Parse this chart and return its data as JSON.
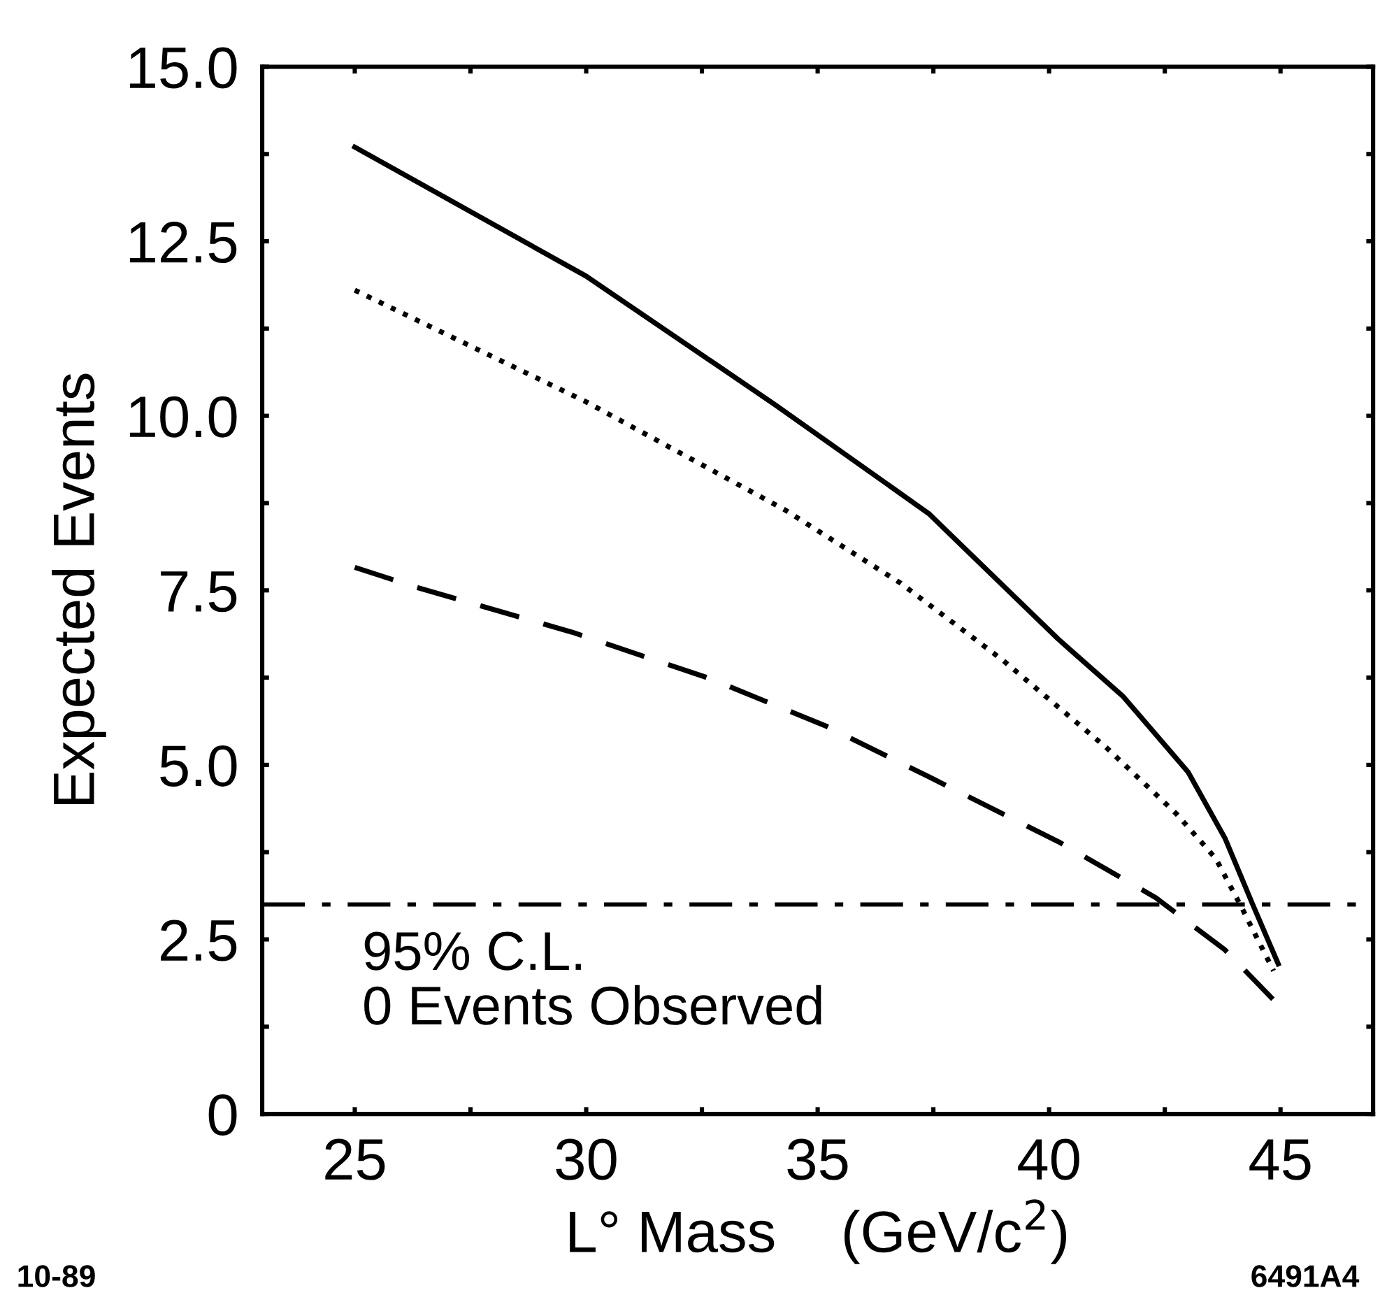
{
  "chart_data": {
    "type": "line",
    "xlabel": "L° Mass    (GeV/c$^{2}$)",
    "ylabel": "Expected Events",
    "series": [
      {
        "color": "#000000",
        "line_style": "solid",
        "x": [
          25,
          30,
          34.1,
          37.4,
          40.2,
          41.6,
          43.0,
          43.8,
          44.4,
          44.95
        ],
        "values": [
          13.85,
          12.0,
          10.15,
          8.6,
          6.8,
          5.98,
          4.9,
          3.95,
          3.0,
          2.15
        ]
      },
      {
        "color": "#000000",
        "line_style": "dotted",
        "x": [
          25,
          30,
          34.3,
          36.8,
          39.0,
          41.25,
          42.75,
          43.6,
          44.15,
          44.85
        ],
        "values": [
          11.8,
          10.2,
          8.65,
          7.6,
          6.5,
          5.24,
          4.3,
          3.66,
          2.97,
          2.05
        ]
      },
      {
        "color": "#000000",
        "line_style": "dashed",
        "x": [
          25,
          26.3,
          29.7,
          32.7,
          35.2,
          37.4,
          40.2,
          42.3,
          43.8,
          44.9
        ],
        "values": [
          7.83,
          7.55,
          6.9,
          6.23,
          5.55,
          4.83,
          3.9,
          3.1,
          2.35,
          1.6
        ]
      }
    ],
    "ref_lines": [
      {
        "axis": "y",
        "value": 3.0,
        "color": "#000000",
        "line_style": "dashdot"
      }
    ],
    "annotations": [
      "95% C.L.\n0 Events Observed",
      "10-89",
      "6491A4"
    ],
    "xlim": [
      23,
      47
    ],
    "ylim": [
      0,
      15
    ],
    "xticks": [
      25,
      {
        "value": 27.5,
        "label": null
      },
      30,
      {
        "value": 32.5,
        "label": null
      },
      35,
      {
        "value": 37.5,
        "label": null
      },
      40,
      {
        "value": 42.5,
        "label": null
      },
      45
    ],
    "yticks": [
      0,
      {
        "value": 1.25,
        "label": null
      },
      2.5,
      {
        "value": 3.75,
        "label": null
      },
      {
        "value": 5,
        "label": "5.0"
      },
      {
        "value": 6.25,
        "label": null
      },
      7.5,
      {
        "value": 8.75,
        "label": null
      },
      {
        "value": 10,
        "label": "10.0"
      },
      {
        "value": 11.25,
        "label": null
      },
      12.5,
      {
        "value": 13.75,
        "label": null
      },
      {
        "value": 15,
        "label": "15.0"
      }
    ],
    "grid": false,
    "legend": false
  }
}
